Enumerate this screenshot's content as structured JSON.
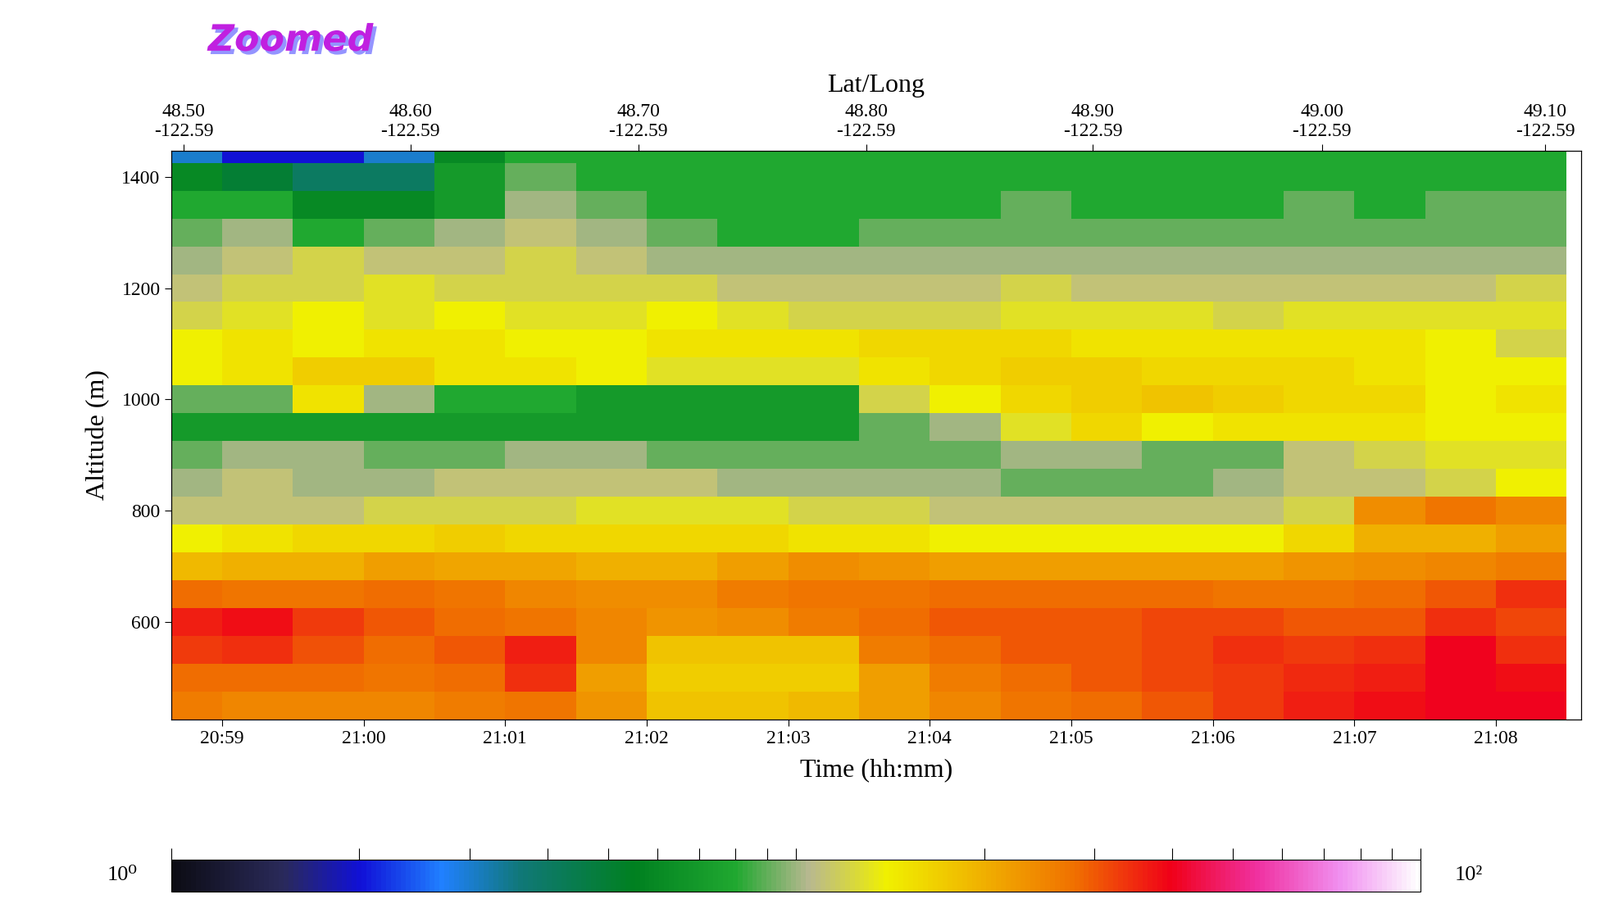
{
  "chart_data": {
    "type": "heatmap",
    "x_label": "Time (hh:mm)",
    "y_label": "Altitude (m)",
    "x2_label": "Lat/Long",
    "annotations": [
      {
        "text": "Zoomed"
      }
    ],
    "xlim": [
      1258.64,
      1268.6
    ],
    "xticks": [
      {
        "value": 1259,
        "label": "20:59"
      },
      {
        "value": 1260,
        "label": "21:00"
      },
      {
        "value": 1261,
        "label": "21:01"
      },
      {
        "value": 1262,
        "label": "21:02"
      },
      {
        "value": 1263,
        "label": "21:03"
      },
      {
        "value": 1264,
        "label": "21:04"
      },
      {
        "value": 1265,
        "label": "21:05"
      },
      {
        "value": 1266,
        "label": "21:06"
      },
      {
        "value": 1267,
        "label": "21:07"
      },
      {
        "value": 1268,
        "label": "21:08"
      }
    ],
    "x2ticks": [
      {
        "value": 1258.73,
        "label": "48.50\n-122.59"
      },
      {
        "value": 1260.33,
        "label": "48.60\n-122.59"
      },
      {
        "value": 1261.94,
        "label": "48.70\n-122.59"
      },
      {
        "value": 1263.55,
        "label": "48.80\n-122.59"
      },
      {
        "value": 1265.15,
        "label": "48.90\n-122.59"
      },
      {
        "value": 1266.77,
        "label": "49.00\n-122.59"
      },
      {
        "value": 1268.35,
        "label": "49.10\n-122.59"
      }
    ],
    "ylim": [
      426,
      1446
    ],
    "yticks": [
      600,
      800,
      1000,
      1200,
      1400
    ],
    "x": [
      1258.75,
      1259.25,
      1259.75,
      1260.25,
      1260.75,
      1261.25,
      1261.75,
      1262.25,
      1262.75,
      1263.25,
      1263.75,
      1264.25,
      1264.75,
      1265.25,
      1265.75,
      1266.25,
      1266.75,
      1267.25,
      1267.75,
      1268.25
    ],
    "y": [
      450,
      500,
      550,
      600,
      650,
      700,
      750,
      800,
      850,
      900,
      950,
      1000,
      1050,
      1100,
      1150,
      1200,
      1250,
      1300,
      1350,
      1400,
      1450
    ],
    "cells": [
      [
        26,
        25,
        25,
        25,
        26,
        27,
        23,
        18,
        18,
        19,
        22,
        25,
        27,
        28,
        30,
        33,
        36,
        38,
        40,
        40
      ],
      [
        28,
        28,
        28,
        27,
        28,
        34,
        22,
        17,
        17,
        17,
        22,
        26,
        28,
        30,
        32,
        33,
        35,
        36,
        40,
        38
      ],
      [
        33,
        34,
        31,
        28,
        30,
        36,
        25,
        18,
        18,
        18,
        26,
        28,
        30,
        30,
        32,
        34,
        33,
        34,
        40,
        34
      ],
      [
        36,
        38,
        33,
        30,
        28,
        27,
        25,
        23,
        24,
        26,
        28,
        30,
        30,
        30,
        32,
        32,
        30,
        30,
        34,
        32
      ],
      [
        28,
        27,
        27,
        28,
        27,
        25,
        24,
        24,
        26,
        27,
        27,
        28,
        28,
        28,
        28,
        27,
        27,
        28,
        30,
        34
      ],
      [
        19,
        20,
        20,
        22,
        21,
        21,
        20,
        20,
        22,
        24,
        23,
        22,
        22,
        22,
        22,
        22,
        23,
        24,
        25,
        26
      ],
      [
        14,
        15,
        16,
        16,
        17,
        16,
        16,
        16,
        16,
        15,
        15,
        14,
        14,
        14,
        14,
        14,
        16,
        20,
        20,
        22
      ],
      [
        11,
        11,
        11,
        12,
        12,
        12,
        13,
        13,
        13,
        12,
        12,
        11,
        11,
        11,
        11,
        11,
        12,
        24,
        27,
        25
      ],
      [
        10,
        11,
        10,
        10,
        11,
        11,
        11,
        11,
        10,
        10,
        10,
        10,
        9,
        9,
        9,
        10,
        11,
        11,
        12,
        14
      ],
      [
        9,
        10,
        10,
        9,
        9,
        10,
        10,
        9,
        9,
        9,
        9,
        9,
        10,
        10,
        9,
        9,
        11,
        12,
        13,
        13
      ],
      [
        7,
        7,
        7,
        7,
        7,
        7,
        7,
        7,
        7,
        7,
        9,
        10,
        13,
        16,
        14,
        15,
        15,
        15,
        14,
        14
      ],
      [
        9,
        9,
        15,
        10,
        8,
        8,
        7,
        7,
        7,
        7,
        12,
        14,
        16,
        17,
        18,
        17,
        16,
        16,
        14,
        15
      ],
      [
        14,
        15,
        17,
        17,
        15,
        15,
        14,
        13,
        13,
        13,
        15,
        16,
        17,
        17,
        16,
        16,
        16,
        15,
        14,
        14
      ],
      [
        14,
        15,
        14,
        15,
        15,
        14,
        14,
        15,
        15,
        15,
        16,
        16,
        16,
        15,
        15,
        15,
        15,
        15,
        14,
        12
      ],
      [
        12,
        13,
        14,
        13,
        14,
        13,
        13,
        14,
        13,
        12,
        12,
        12,
        13,
        13,
        13,
        12,
        13,
        13,
        13,
        13
      ],
      [
        11,
        12,
        12,
        13,
        12,
        12,
        12,
        12,
        11,
        11,
        11,
        11,
        12,
        11,
        11,
        11,
        11,
        11,
        11,
        12
      ],
      [
        10,
        11,
        12,
        11,
        11,
        12,
        11,
        10,
        10,
        10,
        10,
        10,
        10,
        10,
        10,
        10,
        10,
        10,
        10,
        10
      ],
      [
        9,
        10,
        8,
        9,
        10,
        11,
        10,
        9,
        8,
        8,
        9,
        9,
        9,
        9,
        9,
        9,
        9,
        9,
        9,
        9
      ],
      [
        8,
        8,
        6,
        6,
        7,
        10,
        9,
        8,
        8,
        8,
        8,
        8,
        9,
        8,
        8,
        8,
        9,
        8,
        9,
        9
      ],
      [
        6,
        5,
        4,
        4,
        7,
        9,
        8,
        8,
        8,
        8,
        8,
        8,
        8,
        8,
        8,
        8,
        8,
        8,
        8,
        8
      ],
      [
        3,
        2,
        2,
        3,
        6,
        8,
        8,
        8,
        8,
        8,
        8,
        8,
        8,
        8,
        8,
        8,
        8,
        8,
        8,
        8
      ]
    ],
    "colorbar": {
      "range": [
        1,
        100
      ],
      "ticks": [
        {
          "value": 1,
          "label": "10⁰"
        },
        {
          "value": 100,
          "label": "10²"
        }
      ],
      "unlabeled_ticks": [
        2,
        3,
        4,
        5,
        6,
        7,
        8,
        9,
        10,
        20,
        30,
        40,
        50,
        60,
        70,
        80,
        90
      ]
    }
  }
}
